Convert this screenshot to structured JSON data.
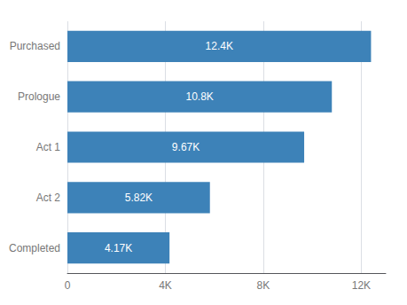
{
  "chart_data": {
    "type": "bar",
    "orientation": "horizontal",
    "categories": [
      "Completed",
      "Act 2",
      "Act 1",
      "Prologue",
      "Purchased"
    ],
    "values": [
      4170,
      5820,
      9670,
      10800,
      12400
    ],
    "value_labels": [
      "4.17K",
      "5.82K",
      "9.67K",
      "10.8K",
      "12.4K"
    ],
    "data_labels": true,
    "color": "#3d82b8",
    "xlim": [
      0,
      13000
    ],
    "xticks": [
      0,
      {
        "value": 4000,
        "label": "4K"
      },
      {
        "value": 8000,
        "label": "8K"
      },
      {
        "value": 12000,
        "label": "12K"
      }
    ],
    "grid": true
  }
}
